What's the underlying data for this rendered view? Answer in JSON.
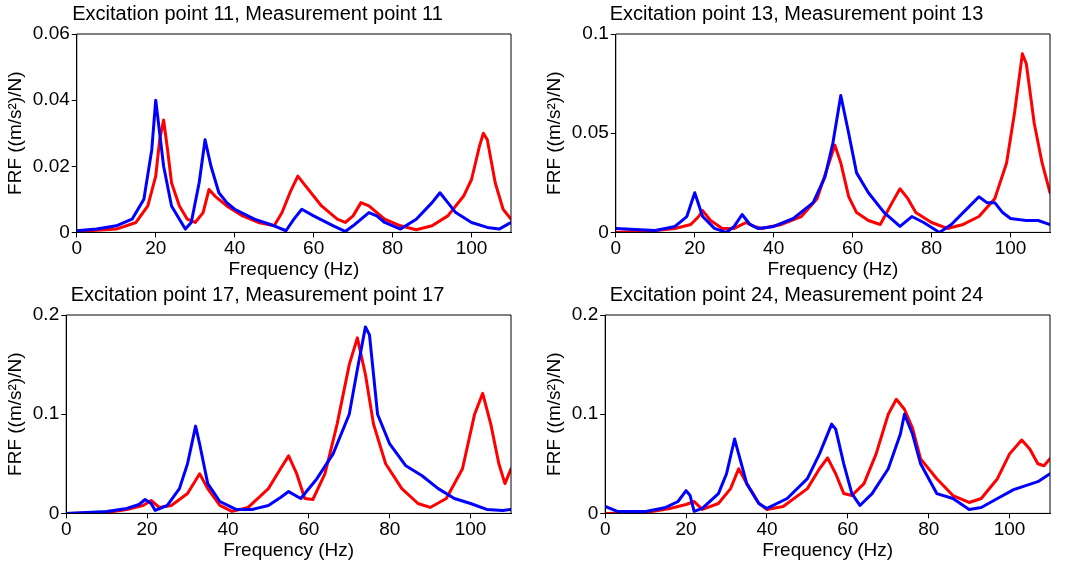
{
  "chart_data": [
    {
      "type": "line",
      "title": "Excitation point 11, Measurement point 11",
      "xlabel": "Frequency (Hz)",
      "ylabel": "FRF ((m/s²)/N)",
      "xlim": [
        0,
        110
      ],
      "xticks": [
        0,
        20,
        40,
        60,
        80,
        100
      ],
      "ylim": [
        0,
        0.06
      ],
      "yticks": [
        0,
        0.02,
        0.04,
        0.06
      ],
      "line_style": "solid",
      "series": [
        {
          "color": "#0000ff",
          "x": [
            0,
            5,
            10,
            14,
            17,
            19,
            20,
            21,
            22,
            24,
            26,
            27.5,
            29,
            31,
            32.5,
            34,
            36,
            38,
            40,
            45,
            50,
            53,
            55,
            57,
            60,
            65,
            68,
            70,
            74,
            76,
            78,
            82,
            86,
            90,
            92,
            94,
            96,
            100,
            104,
            107,
            110
          ],
          "values": [
            0.0005,
            0.001,
            0.002,
            0.004,
            0.01,
            0.025,
            0.04,
            0.03,
            0.02,
            0.008,
            0.004,
            0.001,
            0.003,
            0.015,
            0.028,
            0.02,
            0.012,
            0.009,
            0.007,
            0.004,
            0.002,
            0.0005,
            0.004,
            0.007,
            0.005,
            0.002,
            0.0003,
            0.002,
            0.006,
            0.005,
            0.003,
            0.001,
            0.004,
            0.009,
            0.012,
            0.009,
            0.006,
            0.003,
            0.0015,
            0.001,
            0.003
          ]
        },
        {
          "color": "#ff0000",
          "x": [
            0,
            10,
            15,
            18,
            20,
            21,
            22,
            23,
            24,
            26,
            28,
            30,
            32,
            33.5,
            35,
            38,
            42,
            46,
            50,
            52,
            54,
            56,
            58,
            62,
            66,
            68,
            70,
            72,
            74,
            78,
            82,
            86,
            90,
            94,
            98,
            100,
            102,
            103,
            104,
            106,
            108,
            110
          ],
          "values": [
            0.0003,
            0.001,
            0.003,
            0.008,
            0.017,
            0.028,
            0.034,
            0.025,
            0.015,
            0.008,
            0.004,
            0.003,
            0.006,
            0.013,
            0.011,
            0.008,
            0.005,
            0.003,
            0.002,
            0.006,
            0.012,
            0.017,
            0.014,
            0.008,
            0.004,
            0.003,
            0.005,
            0.009,
            0.008,
            0.004,
            0.002,
            0.0008,
            0.002,
            0.005,
            0.011,
            0.016,
            0.026,
            0.03,
            0.028,
            0.015,
            0.007,
            0.004
          ]
        }
      ]
    },
    {
      "type": "line",
      "title": "Excitation point 13, Measurement point 13",
      "xlabel": "Frequency (Hz)",
      "ylabel": "FRF ((m/s²)/N)",
      "xlim": [
        0,
        110
      ],
      "xticks": [
        0,
        20,
        40,
        60,
        80,
        100
      ],
      "ylim": [
        0,
        0.1
      ],
      "yticks": [
        0,
        0.05,
        0.1
      ],
      "line_style": "solid",
      "series": [
        {
          "color": "#0000ff",
          "x": [
            0,
            10,
            15,
            18,
            20,
            22,
            25,
            28,
            30,
            32,
            34,
            36,
            40,
            45,
            50,
            53,
            55,
            57,
            59,
            61,
            64,
            68,
            72,
            75,
            78,
            82,
            85,
            89,
            92,
            94,
            96,
            98,
            100,
            104,
            107,
            110
          ],
          "values": [
            0.002,
            0.001,
            0.003,
            0.008,
            0.02,
            0.008,
            0.002,
            0,
            0.003,
            0.009,
            0.004,
            0.002,
            0.003,
            0.007,
            0.015,
            0.028,
            0.045,
            0.069,
            0.05,
            0.03,
            0.02,
            0.01,
            0.003,
            0.008,
            0.005,
            0,
            0.004,
            0.012,
            0.018,
            0.015,
            0.015,
            0.01,
            0.007,
            0.006,
            0.006,
            0.004
          ]
        },
        {
          "color": "#ff0000",
          "x": [
            0,
            10,
            15,
            19,
            21,
            22,
            24,
            27,
            30,
            33,
            35,
            37,
            42,
            47,
            51,
            54,
            55.5,
            57,
            59,
            61,
            64,
            67,
            70,
            72,
            74,
            76,
            80,
            84,
            88,
            92,
            96,
            99,
            101,
            103,
            104,
            106,
            108,
            110
          ],
          "values": [
            0,
            0.001,
            0.002,
            0.004,
            0.008,
            0.011,
            0.006,
            0.002,
            0.002,
            0.005,
            0.003,
            0.002,
            0.004,
            0.008,
            0.017,
            0.035,
            0.044,
            0.035,
            0.018,
            0.01,
            0.006,
            0.004,
            0.015,
            0.022,
            0.017,
            0.01,
            0.005,
            0.002,
            0.004,
            0.008,
            0.017,
            0.035,
            0.06,
            0.09,
            0.085,
            0.055,
            0.035,
            0.02
          ]
        }
      ]
    },
    {
      "type": "line",
      "title": "Excitation point 17, Measurement point 17",
      "xlabel": "Frequency (Hz)",
      "ylabel": "FRF ((m/s²)/N)",
      "xlim": [
        0,
        110
      ],
      "xticks": [
        0,
        20,
        40,
        60,
        80,
        100
      ],
      "ylim": [
        0,
        0.2
      ],
      "yticks": [
        0,
        0.1,
        0.2
      ],
      "line_style": "solid",
      "series": [
        {
          "color": "#0000ff",
          "x": [
            0,
            10,
            15,
            18,
            19.5,
            21,
            22,
            25,
            28,
            30,
            32,
            33,
            35,
            38,
            42,
            46,
            50,
            53,
            55,
            58,
            62,
            66,
            70,
            72,
            74,
            75,
            77,
            80,
            84,
            88,
            92,
            96,
            100,
            104,
            108,
            110
          ],
          "values": [
            0,
            0.002,
            0.005,
            0.009,
            0.014,
            0.01,
            0.003,
            0.008,
            0.025,
            0.05,
            0.088,
            0.07,
            0.03,
            0.012,
            0.004,
            0.004,
            0.008,
            0.016,
            0.022,
            0.015,
            0.035,
            0.06,
            0.1,
            0.145,
            0.188,
            0.18,
            0.1,
            0.07,
            0.048,
            0.038,
            0.025,
            0.015,
            0.01,
            0.004,
            0.003,
            0.004
          ]
        },
        {
          "color": "#ff0000",
          "x": [
            0,
            10,
            15,
            19,
            21,
            23,
            26,
            30,
            33,
            35,
            38,
            41,
            45,
            50,
            53,
            55,
            57,
            59,
            61,
            64,
            67,
            70,
            72,
            74,
            76,
            79,
            83,
            87,
            90,
            94,
            98,
            101,
            103,
            105,
            107,
            108.5,
            110
          ],
          "values": [
            0,
            0.001,
            0.004,
            0.008,
            0.013,
            0.006,
            0.008,
            0.02,
            0.04,
            0.025,
            0.008,
            0.002,
            0.006,
            0.025,
            0.045,
            0.058,
            0.04,
            0.015,
            0.014,
            0.04,
            0.09,
            0.15,
            0.177,
            0.14,
            0.09,
            0.05,
            0.025,
            0.01,
            0.006,
            0.015,
            0.045,
            0.1,
            0.121,
            0.09,
            0.05,
            0.03,
            0.045
          ]
        }
      ]
    },
    {
      "type": "line",
      "title": "Excitation point 24, Measurement point 24",
      "xlabel": "Frequency (Hz)",
      "ylabel": "FRF ((m/s²)/N)",
      "xlim": [
        0,
        110
      ],
      "xticks": [
        0,
        20,
        40,
        60,
        80,
        100
      ],
      "ylim": [
        0,
        0.2
      ],
      "yticks": [
        0,
        0.1,
        0.2
      ],
      "line_style": "solid",
      "series": [
        {
          "color": "#0000ff",
          "x": [
            0,
            3,
            10,
            15,
            18,
            20,
            21,
            22,
            24,
            28,
            30,
            32,
            33,
            35,
            38,
            40,
            45,
            50,
            53,
            56,
            57,
            59,
            61,
            63,
            66,
            70,
            73,
            74,
            76,
            78,
            82,
            86,
            90,
            93,
            97,
            101,
            104,
            107,
            110
          ],
          "values": [
            0.007,
            0.002,
            0.002,
            0.006,
            0.012,
            0.023,
            0.018,
            0.002,
            0.005,
            0.02,
            0.04,
            0.075,
            0.06,
            0.03,
            0.01,
            0.005,
            0.015,
            0.035,
            0.06,
            0.09,
            0.085,
            0.05,
            0.02,
            0.008,
            0.02,
            0.045,
            0.08,
            0.1,
            0.08,
            0.05,
            0.02,
            0.015,
            0.004,
            0.006,
            0.015,
            0.024,
            0.028,
            0.032,
            0.04
          ]
        },
        {
          "color": "#ff0000",
          "x": [
            0,
            10,
            16,
            20,
            22,
            24,
            28,
            31,
            33,
            35,
            38,
            40,
            44,
            50,
            53,
            55,
            57,
            59,
            61,
            64,
            67,
            70,
            72,
            74,
            76,
            78,
            82,
            86,
            90,
            93,
            97,
            100,
            103,
            105,
            107,
            108.5,
            110
          ],
          "values": [
            0,
            0.001,
            0.005,
            0.009,
            0.012,
            0.004,
            0.01,
            0.025,
            0.045,
            0.03,
            0.01,
            0.004,
            0.007,
            0.025,
            0.045,
            0.056,
            0.04,
            0.02,
            0.018,
            0.03,
            0.06,
            0.1,
            0.115,
            0.105,
            0.086,
            0.055,
            0.035,
            0.018,
            0.011,
            0.015,
            0.035,
            0.06,
            0.074,
            0.065,
            0.05,
            0.048,
            0.055
          ]
        }
      ]
    }
  ]
}
